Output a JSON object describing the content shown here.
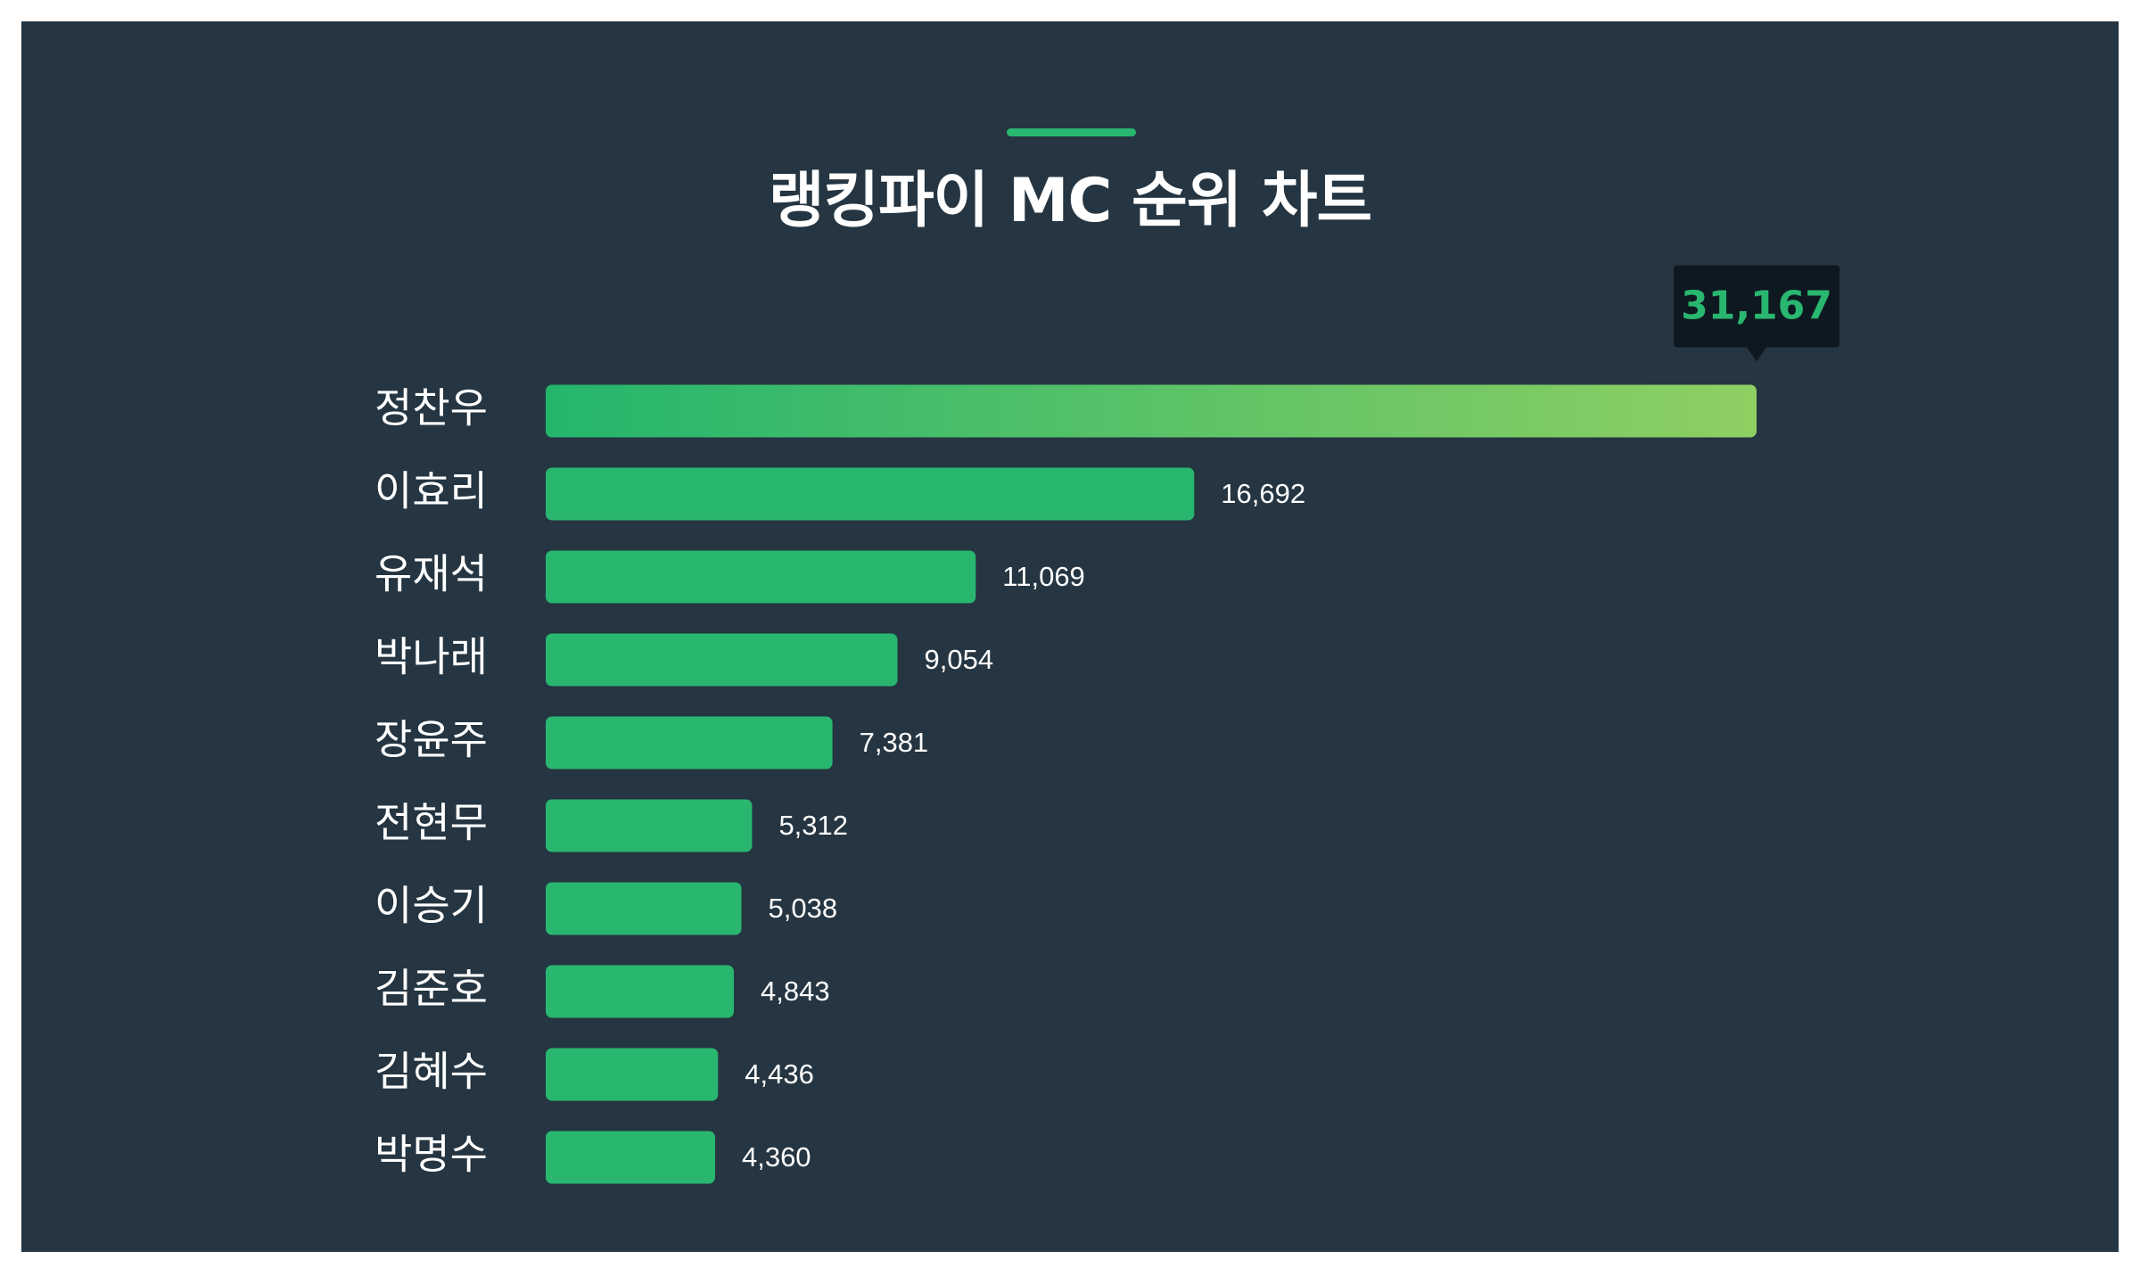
{
  "title": "랭킹파이 MC 순위 차트",
  "colors": {
    "background": "#253541",
    "accent": "#29b770",
    "bar": "#29b770",
    "top_bar_start": "#24b56d",
    "top_bar_end": "#8fcf62",
    "tooltip_bg": "#0e1820",
    "tooltip_text": "#29b770",
    "text": "#ffffff"
  },
  "chart_data": {
    "type": "bar",
    "orientation": "horizontal",
    "title": "랭킹파이 MC 순위 차트",
    "categories": [
      "정찬우",
      "이효리",
      "유재석",
      "박나래",
      "장윤주",
      "전현무",
      "이승기",
      "김준호",
      "김혜수",
      "박명수"
    ],
    "values": [
      31167,
      16692,
      11069,
      9054,
      7381,
      5312,
      5038,
      4843,
      4436,
      4360
    ],
    "value_labels": [
      "31,167",
      "16,692",
      "11,069",
      "9,054",
      "7,381",
      "5,312",
      "5,038",
      "4,843",
      "4,436",
      "4,360"
    ],
    "highlight_index": 0,
    "xlabel": "",
    "ylabel": "",
    "grid": false,
    "legend": "none"
  }
}
